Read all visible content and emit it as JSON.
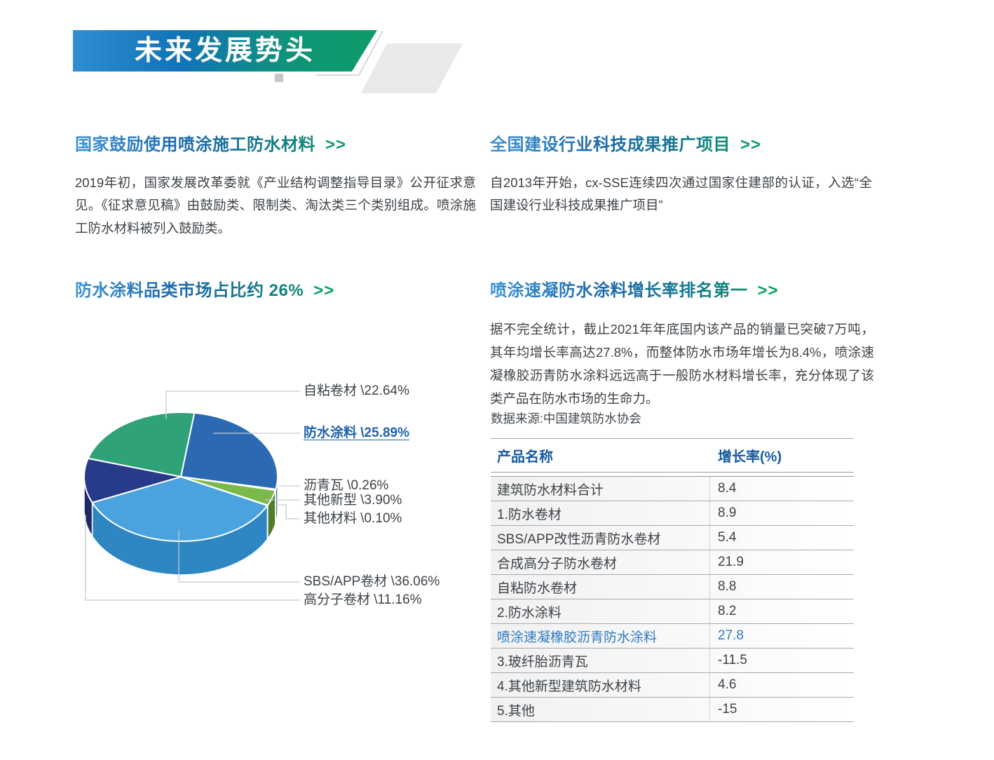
{
  "banner": {
    "title": "未来发展势头"
  },
  "sections": [
    {
      "title": "国家鼓励使用喷涂施工防水材料",
      "arrow": ">>",
      "body": "2019年初，国家发展改革委就《产业结构调整指导目录》公开征求意见。《征求意见稿》由鼓励类、限制类、淘汰类三个类别组成。喷涂施工防水材料被列入鼓励类。"
    },
    {
      "title": "全国建设行业科技成果推广项目",
      "arrow": ">>",
      "body": "自2013年开始，cx-SSE连续四次通过国家住建部的认证，入选“全国建设行业科技成果推广项目”"
    },
    {
      "title": "防水涂料品类市场占比约 26%",
      "arrow": ">>"
    },
    {
      "title": "喷涂速凝防水涂料增长率排名第一",
      "arrow": ">>",
      "body": "据不完全统计，截止2021年年底国内该产品的销量已突破7万吨，其年均增长率高达27.8%，而整体防水市场年增长为8.4%，喷涂速凝橡胶沥青防水涂料远远高于一般防水材料增长率，充分体现了该类产品在防水市场的生命力。"
    }
  ],
  "chart_data": {
    "type": "pie",
    "title": "防水涂料品类市场占比约 26%",
    "unit": "%",
    "style": "3d-pie",
    "start_angle_deg": -82,
    "order": "clockwise-from-top",
    "label_format": "名称 \\百分比%",
    "slices": [
      {
        "name": "防水涂料",
        "value": 25.89,
        "color": "#2b6ab3",
        "side_color": "#1c4f8d",
        "highlight": true
      },
      {
        "name": "沥青瓦",
        "value": 0.26,
        "color": "#ef9540",
        "side_color": "#c2701f",
        "highlight": false
      },
      {
        "name": "其他新型",
        "value": 3.9,
        "color": "#7cb94b",
        "side_color": "#4f7d28",
        "highlight": false
      },
      {
        "name": "其他材料",
        "value": 0.1,
        "color": "#c6c6c6",
        "side_color": "#9fa0a0",
        "highlight": false
      },
      {
        "name": "SBS/APP卷材",
        "value": 36.06,
        "color": "#4aa3de",
        "side_color": "#2e86c2",
        "highlight": false
      },
      {
        "name": "高分子卷材",
        "value": 11.16,
        "color": "#283a8a",
        "side_color": "#1d2a66",
        "highlight": false
      },
      {
        "name": "自粘卷材",
        "value": 22.64,
        "color": "#2fa377",
        "side_color": "#1f7c55",
        "highlight": false
      }
    ]
  },
  "source_note": "数据来源:中国建筑防水协会",
  "table": {
    "headers": [
      "产品名称",
      "增长率(%)"
    ],
    "rows": [
      {
        "name": "建筑防水材料合计",
        "value": "8.4",
        "highlight": false
      },
      {
        "name": "1.防水卷材",
        "value": "8.9",
        "highlight": false
      },
      {
        "name": "SBS/APP改性沥青防水卷材",
        "value": "5.4",
        "highlight": false
      },
      {
        "name": "合成高分子防水卷材",
        "value": "21.9",
        "highlight": false
      },
      {
        "name": "自粘防水卷材",
        "value": "8.8",
        "highlight": false
      },
      {
        "name": "2.防水涂料",
        "value": "8.2",
        "highlight": false
      },
      {
        "name": "喷涂速凝橡胶沥青防水涂料",
        "value": "27.8",
        "highlight": true
      },
      {
        "name": "3.玻纤胎沥青瓦",
        "value": "-11.5",
        "highlight": false
      },
      {
        "name": "4.其他新型建筑防水材料",
        "value": "4.6",
        "highlight": false
      },
      {
        "name": "5.其他",
        "value": "-15",
        "highlight": false
      }
    ]
  },
  "colors": {
    "banner_gradient_from": "#2e8ed1",
    "banner_gradient_to": "#0e9c66",
    "heading_gradient_from": "#3a92d3",
    "heading_gradient_to": "#0f8a72",
    "arrow_green": "#0aa061",
    "table_header_blue": "#17599f",
    "highlight_blue": "#2e79c1",
    "body_text": "#3d4247"
  }
}
